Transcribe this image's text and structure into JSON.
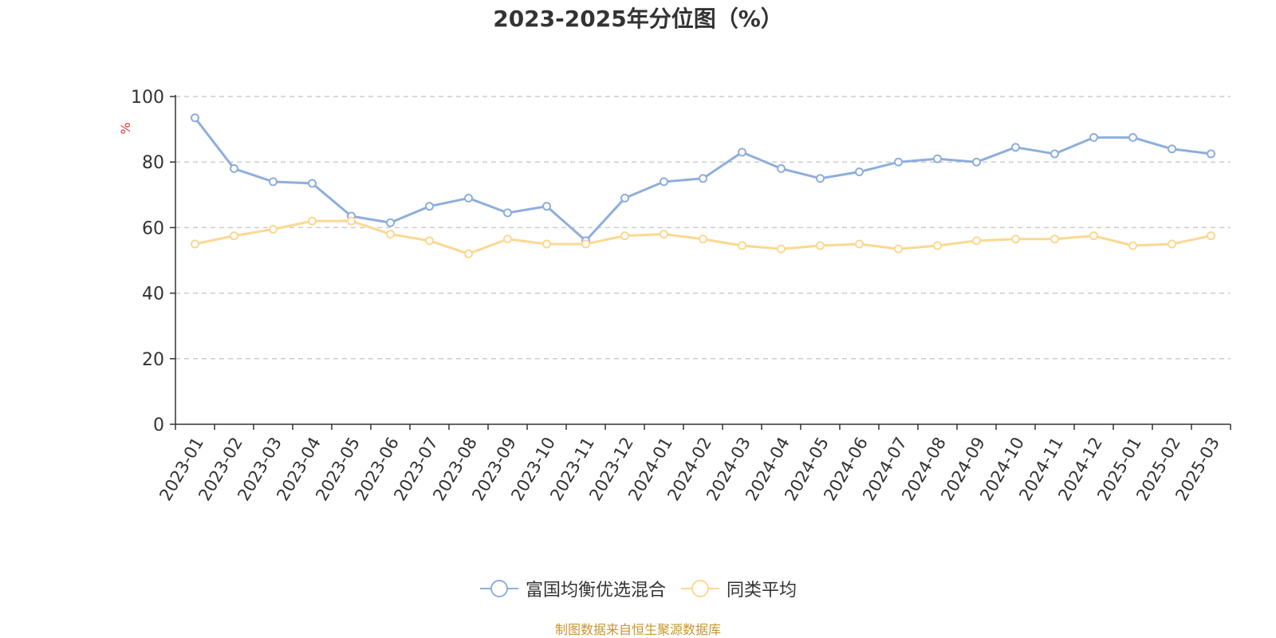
{
  "chart_data": {
    "type": "line",
    "title": "2023-2025年分位图（%）",
    "ylabel": "%",
    "xlabel": "",
    "ylim": [
      0,
      100
    ],
    "yticks": [
      0,
      20,
      40,
      60,
      80,
      100
    ],
    "grid": true,
    "legend_position": "bottom-center",
    "categories": [
      "2023-01",
      "2023-02",
      "2023-03",
      "2023-04",
      "2023-05",
      "2023-06",
      "2023-07",
      "2023-08",
      "2023-09",
      "2023-10",
      "2023-11",
      "2023-12",
      "2024-01",
      "2024-02",
      "2024-03",
      "2024-04",
      "2024-05",
      "2024-06",
      "2024-07",
      "2024-08",
      "2024-09",
      "2024-10",
      "2024-11",
      "2024-12",
      "2025-01",
      "2025-02",
      "2025-03"
    ],
    "series": [
      {
        "name": "富国均衡优选混合",
        "color": "#8eaedc",
        "values": [
          93.5,
          78,
          74,
          73.5,
          63.5,
          61.5,
          66.5,
          69,
          64.5,
          66.5,
          56,
          69,
          74,
          75,
          83,
          78,
          75,
          77,
          80,
          81,
          80,
          84.5,
          82.5,
          87.5,
          87.5,
          84,
          82.5
        ]
      },
      {
        "name": "同类平均",
        "color": "#fbd891",
        "values": [
          55,
          57.5,
          59.5,
          62,
          62,
          58,
          56,
          52,
          56.5,
          55,
          55,
          57.5,
          58,
          56.5,
          54.5,
          53.5,
          54.5,
          55,
          53.5,
          54.5,
          56,
          56.5,
          56.5,
          57.5,
          54.5,
          55,
          57.5
        ]
      }
    ]
  },
  "source_note": "制图数据来自恒生聚源数据库",
  "colors": {
    "axis": "#333333",
    "grid": "#cccccc",
    "unit_label": "#e53935",
    "source_note": "#c8962e"
  }
}
